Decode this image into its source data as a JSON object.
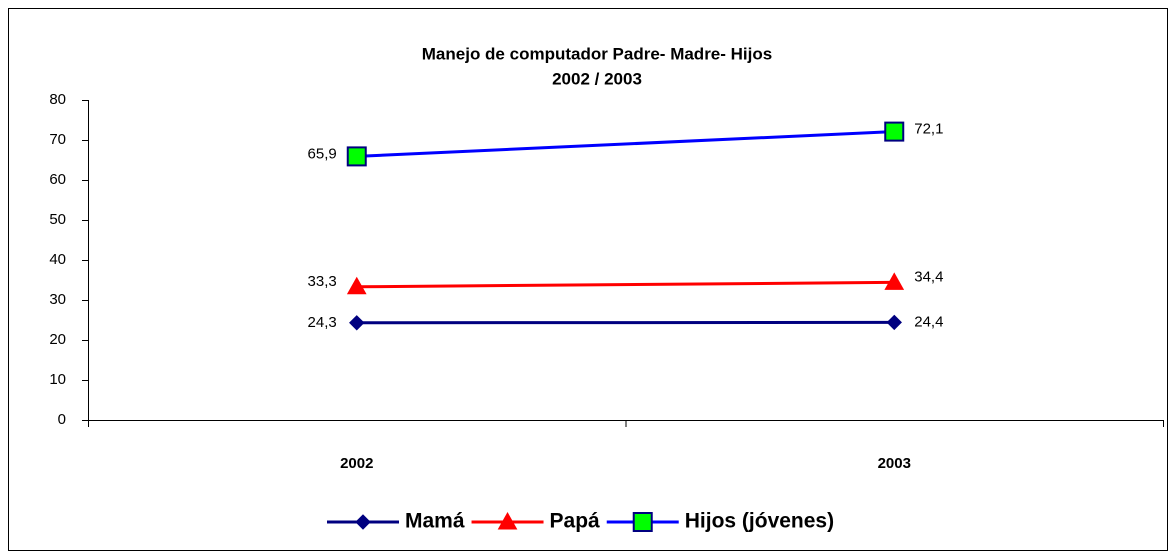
{
  "chart_data": {
    "type": "line",
    "title": "Manejo de computador Padre- Madre- Hijos",
    "subtitle": "2002 / 2003",
    "categories": [
      "2002",
      "2003"
    ],
    "series": [
      {
        "name": "Mamá",
        "color": "#000080",
        "marker": "diamond",
        "marker_color": "#000080",
        "values": [
          24.3,
          24.4
        ],
        "value_labels": [
          "24,3",
          "24,4"
        ]
      },
      {
        "name": "Papá",
        "color": "#ff0000",
        "marker": "triangle",
        "marker_color": "#ff0000",
        "values": [
          33.3,
          34.4
        ],
        "value_labels": [
          "33,3",
          "34,4"
        ]
      },
      {
        "name": "Hijos (jóvenes)",
        "color": "#0000ff",
        "marker": "square",
        "marker_color": "#00ff00",
        "values": [
          65.9,
          72.1
        ],
        "value_labels": [
          "65,9",
          "72,1"
        ]
      }
    ],
    "ylim": [
      0,
      80
    ],
    "yticks": [
      0,
      10,
      20,
      30,
      40,
      50,
      60,
      70,
      80
    ],
    "grid": false,
    "legend": "bottom"
  }
}
